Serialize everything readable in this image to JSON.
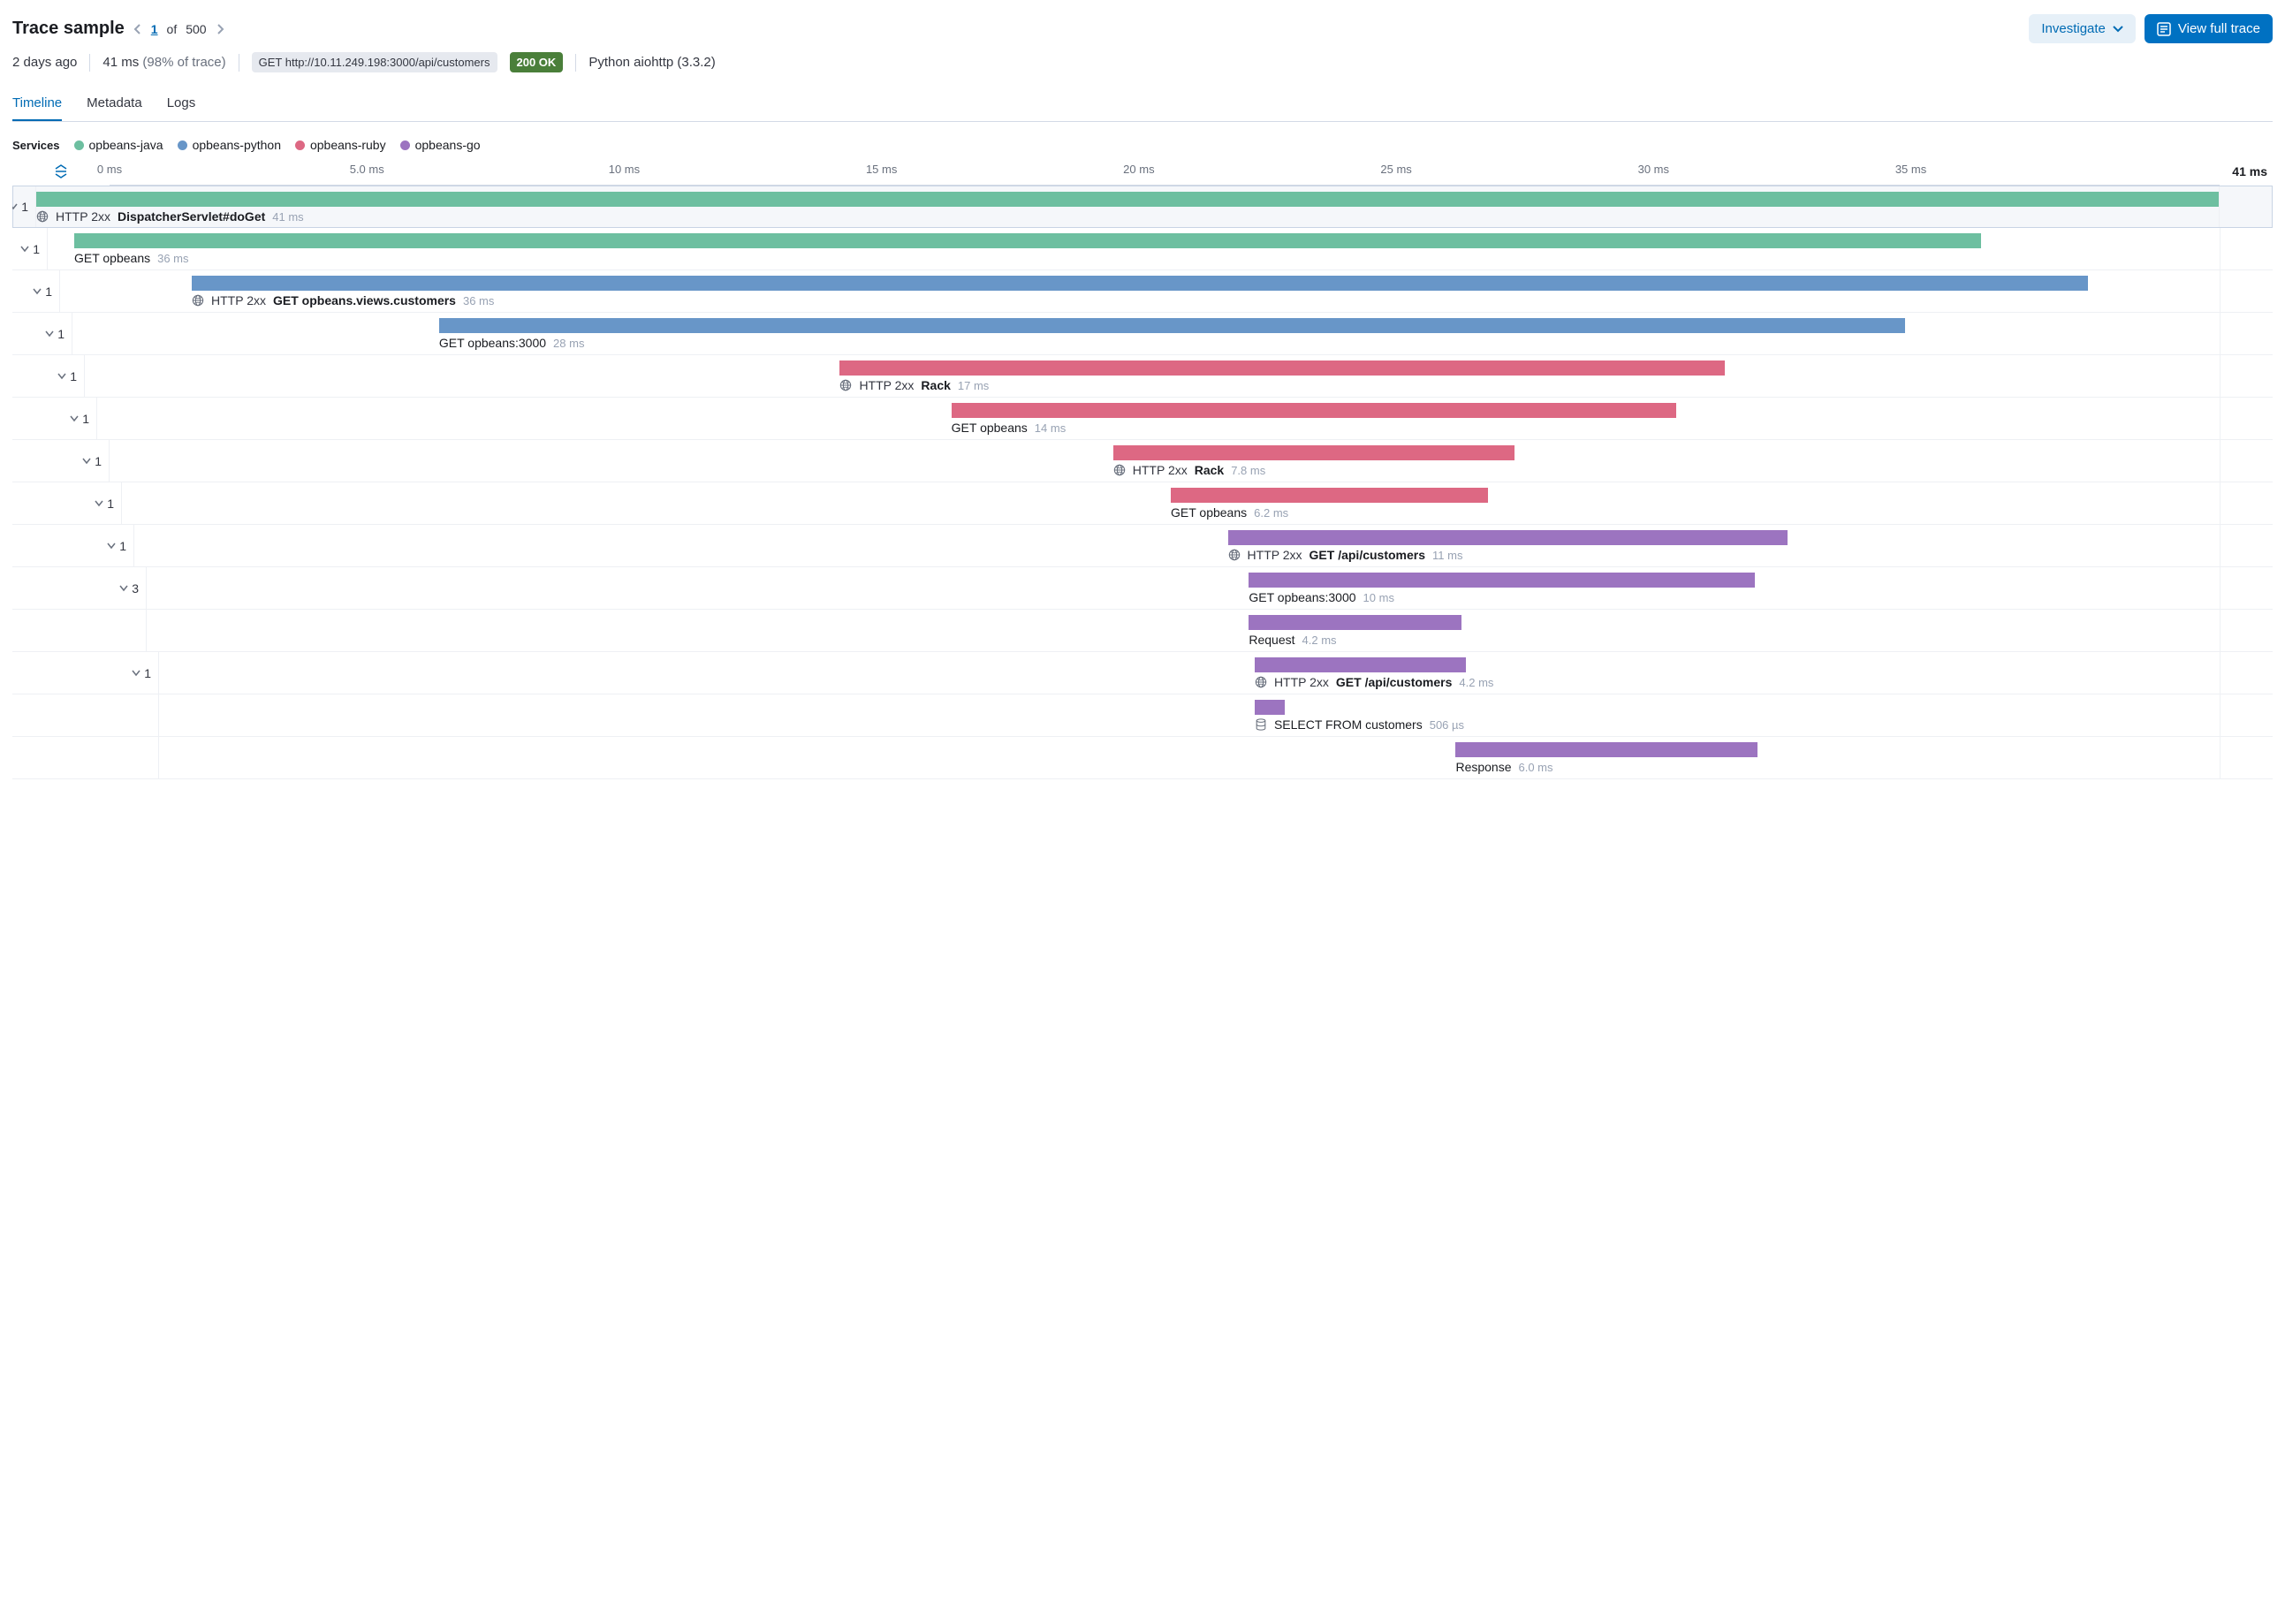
{
  "colors": {
    "java": "#6dbfa0",
    "python": "#6896c8",
    "ruby": "#dd6883",
    "go": "#9c74c0",
    "primary": "#0071c2",
    "lightblue": "#e6f0f8",
    "link": "#006bb4"
  },
  "header": {
    "title": "Trace sample",
    "index": "1",
    "of": "of",
    "total": "500",
    "investigate": "Investigate",
    "view_full": "View full trace"
  },
  "meta": {
    "age": "2 days ago",
    "duration": "41 ms",
    "pct": "(98% of trace)",
    "url": "GET http://10.11.249.198:3000/api/customers",
    "status": "200 OK",
    "client": "Python aiohttp (3.3.2)"
  },
  "tabs": [
    {
      "label": "Timeline",
      "active": true
    },
    {
      "label": "Metadata",
      "active": false
    },
    {
      "label": "Logs",
      "active": false
    }
  ],
  "services_label": "Services",
  "legend": [
    {
      "name": "opbeans-java",
      "color": "#6dbfa0"
    },
    {
      "name": "opbeans-python",
      "color": "#6896c8"
    },
    {
      "name": "opbeans-ruby",
      "color": "#dd6883"
    },
    {
      "name": "opbeans-go",
      "color": "#9c74c0"
    }
  ],
  "axis": {
    "total_ms": 41,
    "end_label": "41 ms",
    "ticks": [
      {
        "pos": 0,
        "label": "0 ms"
      },
      {
        "pos": 5,
        "label": "5.0 ms"
      },
      {
        "pos": 10,
        "label": "10 ms"
      },
      {
        "pos": 15,
        "label": "15 ms"
      },
      {
        "pos": 20,
        "label": "20 ms"
      },
      {
        "pos": 25,
        "label": "25 ms"
      },
      {
        "pos": 30,
        "label": "30 ms"
      },
      {
        "pos": 35,
        "label": "35 ms"
      }
    ]
  },
  "spans": [
    {
      "depth": 0,
      "count": "1",
      "chev": true,
      "selected": true,
      "start": 0,
      "dur": 41,
      "color": "#6dbfa0",
      "icon": "net",
      "status": "HTTP 2xx",
      "name": "DispatcherServlet#doGet",
      "bold": true,
      "dur_label": "41 ms"
    },
    {
      "depth": 1,
      "count": "1",
      "chev": true,
      "start": 0.5,
      "dur": 36,
      "color": "#6dbfa0",
      "name": "GET opbeans",
      "dur_label": "36 ms"
    },
    {
      "depth": 2,
      "count": "1",
      "chev": true,
      "start": 2.5,
      "dur": 36,
      "color": "#6896c8",
      "icon": "net",
      "status": "HTTP 2xx",
      "name": "GET opbeans.views.customers",
      "bold": true,
      "dur_label": "36 ms"
    },
    {
      "depth": 3,
      "count": "1",
      "chev": true,
      "start": 7,
      "dur": 28,
      "color": "#6896c8",
      "name": "GET opbeans:3000",
      "dur_label": "28 ms"
    },
    {
      "depth": 4,
      "count": "1",
      "chev": true,
      "start": 14.5,
      "dur": 17,
      "color": "#dd6883",
      "icon": "net",
      "status": "HTTP 2xx",
      "name": "Rack",
      "bold": true,
      "dur_label": "17 ms"
    },
    {
      "depth": 5,
      "count": "1",
      "chev": true,
      "start": 16.5,
      "dur": 14,
      "color": "#dd6883",
      "name": "GET opbeans",
      "dur_label": "14 ms"
    },
    {
      "depth": 6,
      "count": "1",
      "chev": true,
      "start": 19.5,
      "dur": 7.8,
      "color": "#dd6883",
      "icon": "net",
      "status": "HTTP 2xx",
      "name": "Rack",
      "bold": true,
      "dur_label": "7.8 ms"
    },
    {
      "depth": 7,
      "count": "1",
      "chev": true,
      "start": 20.5,
      "dur": 6.2,
      "color": "#dd6883",
      "name": "GET opbeans",
      "dur_label": "6.2 ms"
    },
    {
      "depth": 8,
      "count": "1",
      "chev": true,
      "start": 21.5,
      "dur": 11,
      "color": "#9c74c0",
      "icon": "net",
      "status": "HTTP 2xx",
      "name": "GET /api/customers",
      "bold": true,
      "dur_label": "11 ms"
    },
    {
      "depth": 9,
      "count": "3",
      "chev": true,
      "start": 21.8,
      "dur": 10,
      "color": "#9c74c0",
      "name": "GET opbeans:3000",
      "dur_label": "10 ms"
    },
    {
      "depth": 9,
      "count": "",
      "chev": false,
      "start": 21.8,
      "dur": 4.2,
      "color": "#9c74c0",
      "name": "Request",
      "dur_label": "4.2 ms"
    },
    {
      "depth": 10,
      "count": "1",
      "chev": true,
      "start": 21.8,
      "dur": 4.2,
      "color": "#9c74c0",
      "icon": "net",
      "status": "HTTP 2xx",
      "name": "GET /api/customers",
      "bold": true,
      "dur_label": "4.2 ms"
    },
    {
      "depth": 10,
      "count": "",
      "chev": false,
      "start": 21.8,
      "dur": 0.6,
      "color": "#9c74c0",
      "icon": "db",
      "name": "SELECT FROM customers",
      "dur_label": "506 µs"
    },
    {
      "depth": 10,
      "count": "",
      "chev": false,
      "start": 25.8,
      "dur": 6.0,
      "color": "#9c74c0",
      "name": "Response",
      "dur_label": "6.0 ms"
    }
  ]
}
